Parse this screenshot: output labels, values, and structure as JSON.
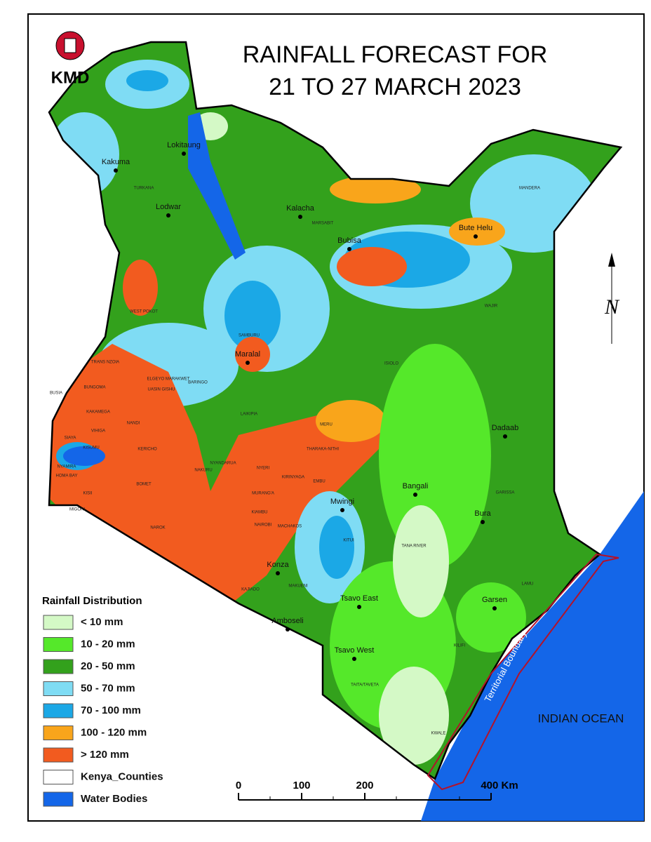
{
  "header": {
    "title_lines": [
      "RAINFALL FORECAST FOR",
      "21 TO 27 MARCH 2023"
    ],
    "logo_text": "KMD"
  },
  "legend": {
    "title": "Rainfall Distribution",
    "items": [
      {
        "label": "< 10 mm",
        "color": "#d4f9c6"
      },
      {
        "label": "10 - 20 mm",
        "color": "#55e82a"
      },
      {
        "label": "20 - 50 mm",
        "color": "#33a11c"
      },
      {
        "label": "50 - 70 mm",
        "color": "#7fdcf4"
      },
      {
        "label": "70 - 100 mm",
        "color": "#1ba8e6"
      },
      {
        "label": "100 - 120 mm",
        "color": "#f9a51b"
      },
      {
        "label": "> 120 mm",
        "color": "#f25b1f"
      },
      {
        "label": "Kenya_Counties",
        "color": "#ffffff"
      },
      {
        "label": "Water Bodies",
        "color": "#1466e8"
      }
    ]
  },
  "places": [
    "Lokitaung",
    "Kakuma",
    "Lodwar",
    "Kalacha",
    "Bubisa",
    "Bute Helu",
    "Maralal",
    "Dadaab",
    "Bangali",
    "Mwingi",
    "Bura",
    "Konza",
    "Tsavo East",
    "Garsen",
    "Amboseli",
    "Tsavo West"
  ],
  "counties": [
    "TURKANA",
    "MARSABIT",
    "MANDERA",
    "WAJIR",
    "WEST POKOT",
    "SAMBURU",
    "ISIOLO",
    "TRANS NZOIA",
    "BARINGO",
    "LAIKIPIA",
    "MERU",
    "BUNGOMA",
    "KAKAMEGA",
    "NANDI",
    "SIAYA",
    "KISUMU",
    "VIHIGA",
    "HOMA BAY",
    "KERICHO",
    "NYAMIRA",
    "KISII",
    "MIGORI",
    "BOMET",
    "NAKURU",
    "NYANDARUA",
    "NYERI",
    "KIRINYAGA",
    "THARAKA-NITHI",
    "EMBU",
    "MURANG'A",
    "KIAMBU",
    "NAIROBI",
    "MACHAKOS",
    "KITUI",
    "TANA RIVER",
    "GARISSA",
    "LAMU",
    "KAJIADO",
    "MAKUENI",
    "KILIFI",
    "TAITA/TAVETA",
    "KWALE",
    "NAROK",
    "UASIN GISHU",
    "BUSIA",
    "ELGEYO MARAKWET"
  ],
  "annotations": {
    "ocean": "INDIAN OCEAN",
    "boundary": "Territorial Boundary",
    "north": "N"
  },
  "scale_bar": {
    "ticks": [
      0,
      100,
      200,
      {
        "value": 400,
        "label": "400 Km"
      }
    ],
    "max": 400
  }
}
